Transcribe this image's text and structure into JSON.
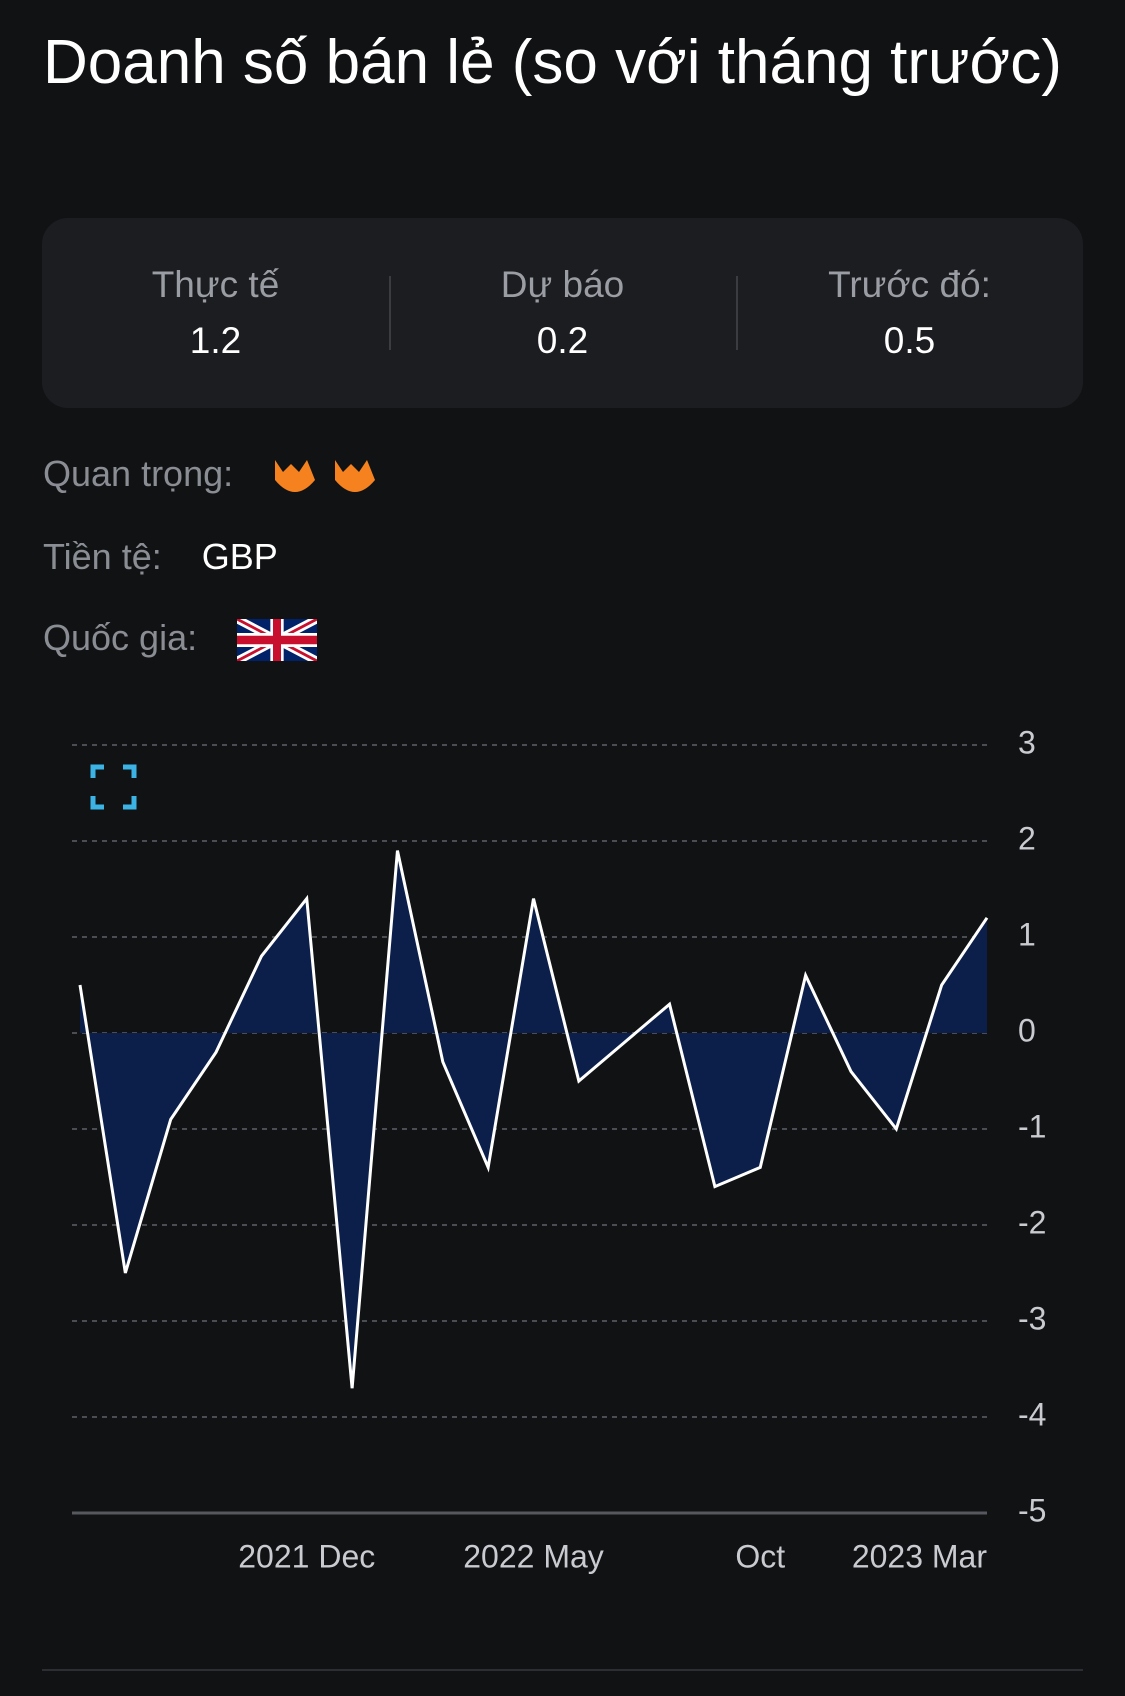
{
  "title": "Doanh số bán lẻ (so với tháng trước)",
  "stats": [
    {
      "label": "Thực tế",
      "value": 1.2
    },
    {
      "label": "Dự báo",
      "value": 0.2
    },
    {
      "label": "Trước đó:",
      "value": 0.5
    }
  ],
  "importance": {
    "label": "Quan trọng:"
  },
  "currency": {
    "label": "Tiền tệ:",
    "value": "GBP"
  },
  "country": {
    "label": "Quốc gia:"
  },
  "chart_data": {
    "type": "area",
    "categories": [
      null,
      null,
      null,
      null,
      null,
      "2021 Dec",
      null,
      null,
      null,
      null,
      "2022 May",
      null,
      null,
      null,
      null,
      "Oct",
      null,
      null,
      null,
      null,
      "2023 Mar"
    ],
    "series": [
      {
        "name": "Doanh số bán lẻ",
        "color": "#ffffff",
        "fill": "#0c1f4a",
        "values": [
          0.5,
          -2.5,
          -0.9,
          -0.2,
          0.8,
          1.4,
          -3.7,
          1.9,
          -0.3,
          -1.4,
          1.4,
          -0.5,
          -0.1,
          0.3,
          -1.6,
          -1.4,
          0.6,
          -0.4,
          -1.0,
          0.5,
          1.2
        ]
      }
    ],
    "ylim": [
      -5,
      3
    ],
    "yticks": [
      -5,
      -4,
      -3,
      -2,
      -1,
      0,
      1,
      2,
      3
    ],
    "grid": true
  }
}
